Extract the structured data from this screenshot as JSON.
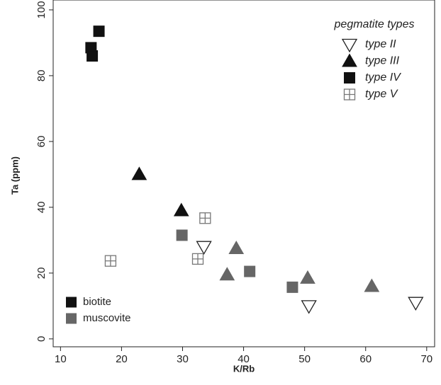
{
  "chart_data": {
    "type": "scatter",
    "x_label": "K/Rb",
    "y_label": "Ta (ppm)",
    "xlim": [
      8.8,
      71.3
    ],
    "ylim": [
      -2.4,
      103
    ],
    "xticks": [
      10,
      20,
      30,
      40,
      50,
      60,
      70
    ],
    "yticks": [
      0,
      20,
      40,
      60,
      80,
      100
    ],
    "shape_legend_title": "pegmatite types",
    "shape_legend": [
      {
        "label": "type II",
        "marker": "triangle-down-open"
      },
      {
        "label": "type III",
        "marker": "triangle"
      },
      {
        "label": "type IV",
        "marker": "square"
      },
      {
        "label": "type V",
        "marker": "square-cross"
      }
    ],
    "color_legend": [
      {
        "label": "biotite",
        "color": "#111111"
      },
      {
        "label": "muscovite",
        "color": "#666666"
      }
    ],
    "series": [
      {
        "marker": "square",
        "color": "#111111",
        "x": [
          15,
          15.2,
          16.3
        ],
        "y": [
          88.5,
          86,
          93.5
        ]
      },
      {
        "marker": "triangle",
        "color": "#111111",
        "x": [
          22.9,
          29.8
        ],
        "y": [
          50,
          39
        ]
      },
      {
        "marker": "square",
        "color": "#666666",
        "x": [
          29.9,
          41,
          48
        ],
        "y": [
          31.5,
          20.5,
          15.7
        ]
      },
      {
        "marker": "triangle",
        "color": "#666666",
        "x": [
          37.3,
          38.8,
          50.5,
          61
        ],
        "y": [
          19.5,
          27.5,
          18.5,
          16
        ]
      },
      {
        "marker": "triangle-down-open",
        "color": "#222222",
        "x": [
          33.5,
          50.7,
          68.2
        ],
        "y": [
          28,
          10,
          11
        ]
      },
      {
        "marker": "square-cross",
        "color": "#777777",
        "x": [
          18.2,
          32.5,
          33.7
        ],
        "y": [
          23.7,
          24.3,
          36.7
        ]
      }
    ]
  }
}
